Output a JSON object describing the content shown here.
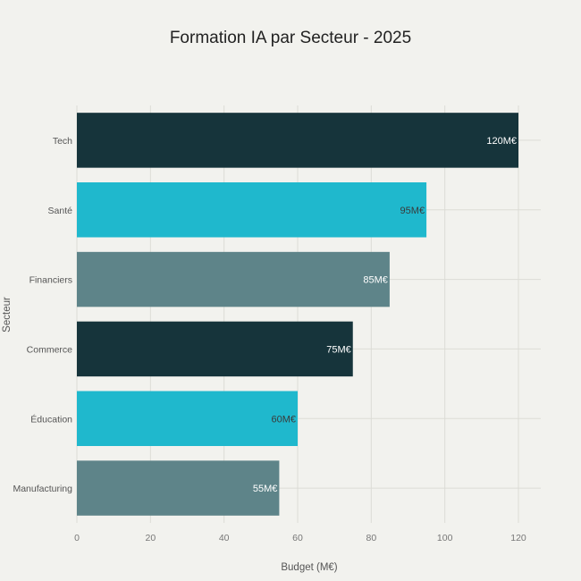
{
  "chart_data": {
    "type": "bar",
    "orientation": "horizontal",
    "title": "Formation IA par Secteur - 2025",
    "xlabel": "Budget (M€)",
    "ylabel": "Secteur",
    "categories": [
      "Tech",
      "Santé",
      "Financiers",
      "Commerce",
      "Éducation",
      "Manufacturing"
    ],
    "values": [
      120,
      95,
      85,
      75,
      60,
      55
    ],
    "data_labels": [
      "120M€",
      "95M€",
      "85M€",
      "75M€",
      "60M€",
      "55M€"
    ],
    "colors": [
      "#16343b",
      "#1fb8cd",
      "#5e8489",
      "#16343b",
      "#1fb8cd",
      "#5e8489"
    ],
    "label_colors": [
      "#ffffff",
      "#3a3a3a",
      "#ffffff",
      "#ffffff",
      "#3a3a3a",
      "#ffffff"
    ],
    "xlim": [
      0,
      125
    ],
    "xticks": [
      0,
      20,
      40,
      60,
      80,
      100,
      120
    ],
    "grid": true,
    "legend": "none"
  }
}
